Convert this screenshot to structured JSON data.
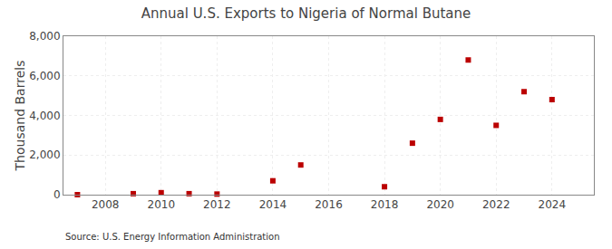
{
  "chart_data": {
    "type": "scatter",
    "title": "Annual U.S. Exports to Nigeria of Normal Butane",
    "ylabel": "Thousand Barrels",
    "annotations": [
      "Source: U.S. Energy Information Administration"
    ],
    "x": [
      2007,
      2009,
      2010,
      2011,
      2012,
      2014,
      2015,
      2018,
      2019,
      2020,
      2021,
      2022,
      2023,
      2024
    ],
    "values": [
      0,
      50,
      100,
      50,
      30,
      700,
      1500,
      400,
      2600,
      3800,
      6800,
      3500,
      5200,
      4800
    ],
    "color": "#bb0000",
    "marker": "square",
    "xlim": [
      2006.5,
      2025.5
    ],
    "xticks": [
      2008,
      2010,
      2012,
      2014,
      2016,
      2018,
      2020,
      2022,
      2024
    ],
    "ylim": [
      0,
      8000
    ],
    "yticks": [
      0,
      {
        "value": 2000,
        "label": "2,000"
      },
      {
        "value": 4000,
        "label": "4,000"
      },
      {
        "value": 6000,
        "label": "6,000"
      },
      {
        "value": 8000,
        "label": "8,000"
      }
    ],
    "grid": true
  }
}
